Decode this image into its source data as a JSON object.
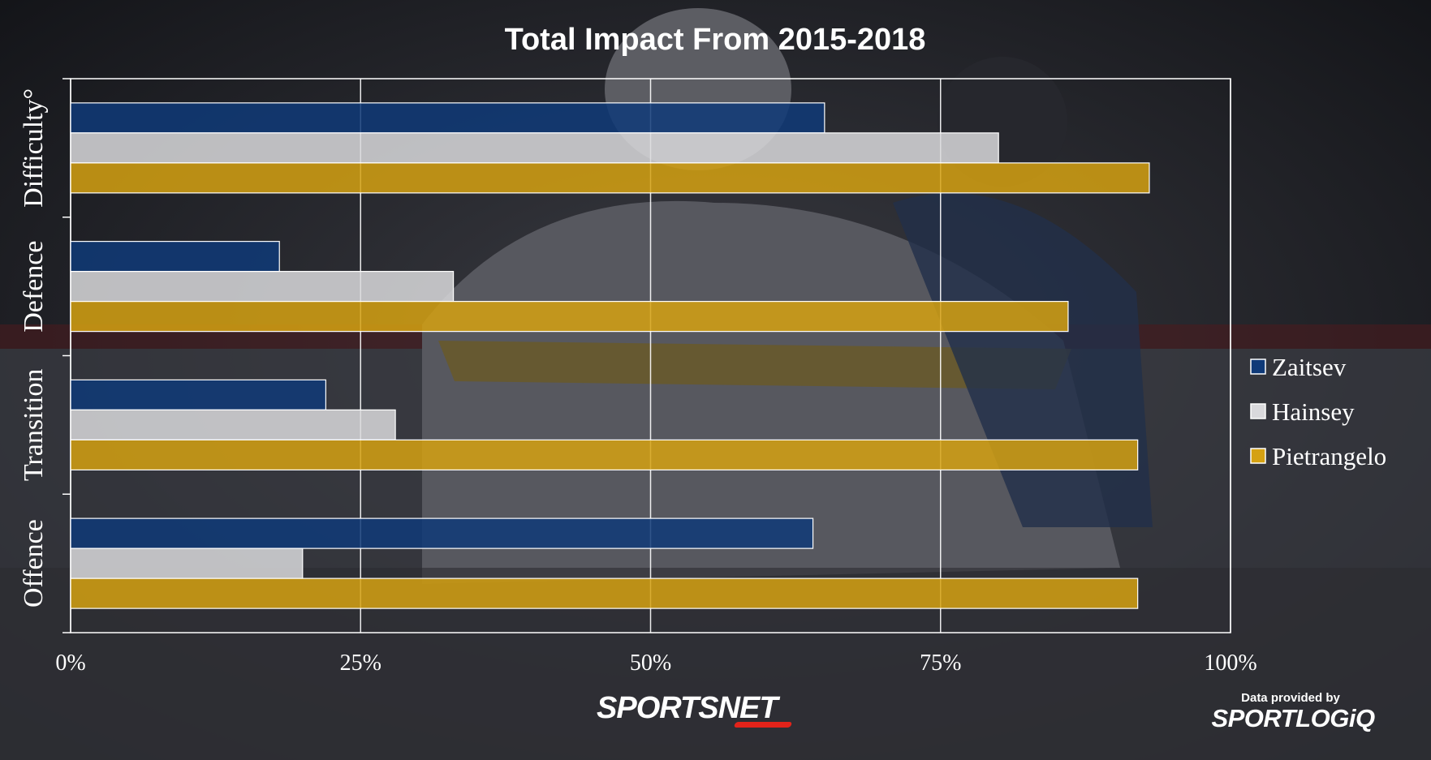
{
  "chart_data": {
    "type": "bar",
    "orientation": "horizontal",
    "title": "Total Impact From 2015-2018",
    "categories": [
      "Difficulty°",
      "Defence",
      "Transition",
      "Offence"
    ],
    "series": [
      {
        "name": "Zaitsev",
        "values": [
          65,
          18,
          22,
          64
        ]
      },
      {
        "name": "Hainsey",
        "values": [
          80,
          33,
          28,
          20
        ]
      },
      {
        "name": "Pietrangelo",
        "values": [
          93,
          86,
          92,
          92
        ]
      }
    ],
    "xlim": [
      0,
      100
    ],
    "x_ticks": [
      "0%",
      "25%",
      "50%",
      "75%",
      "100%"
    ],
    "grid": true,
    "legend_position": "right",
    "colors": {
      "Zaitsev": "#0f3a78",
      "Hainsey": "#d9d9dc",
      "Pietrangelo": "#d5a112"
    }
  },
  "branding": {
    "network": "SPORTSNET",
    "credit_prefix": "Data provided by",
    "credit_brand": "SPORTLOGiQ"
  }
}
